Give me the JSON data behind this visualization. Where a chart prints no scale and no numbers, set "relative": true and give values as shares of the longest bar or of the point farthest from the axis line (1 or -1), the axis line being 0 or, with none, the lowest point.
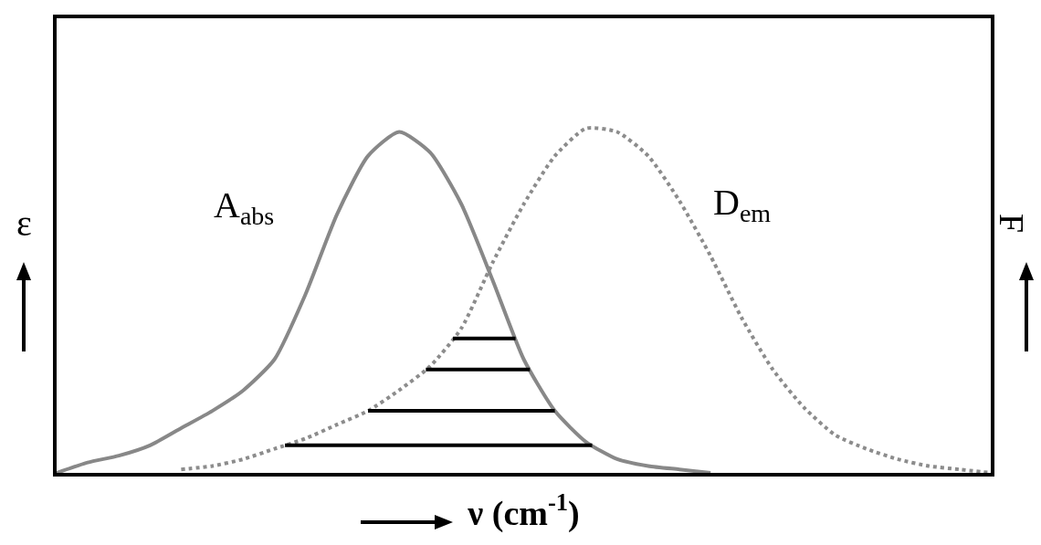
{
  "chart_data": {
    "type": "line",
    "relative": true,
    "xlabel": "ν (cm$^{-1}$)",
    "ylabel": "ε",
    "y2label": "F",
    "legend": false,
    "grid": false,
    "categories": [
      null,
      null,
      null,
      null,
      null,
      null,
      null,
      null,
      null,
      null,
      null,
      null,
      null,
      null,
      null,
      null,
      null,
      null,
      null,
      null,
      null,
      null,
      null,
      null,
      null,
      null,
      null,
      null,
      null,
      null,
      null
    ],
    "series": [
      {
        "name": "A$_{abs}$",
        "color": "#888888",
        "line_style": "solid",
        "values": [
          0,
          0.03,
          0.05,
          0.08,
          0.13,
          0.18,
          0.24,
          0.33,
          0.52,
          0.75,
          0.92,
          0.99,
          0.93,
          0.78,
          0.56,
          0.33,
          0.18,
          0.09,
          0.04,
          0.02,
          0.01,
          0,
          null,
          null,
          null,
          null,
          null,
          null,
          null,
          null,
          null
        ]
      },
      {
        "name": "D$_{em}$",
        "color": "#8c8c8c",
        "line_style": "dotted",
        "values": [
          null,
          null,
          null,
          null,
          0.01,
          0.02,
          0.04,
          0.07,
          0.1,
          0.14,
          0.18,
          0.24,
          0.31,
          0.42,
          0.61,
          0.78,
          0.92,
          1,
          0.99,
          0.92,
          0.79,
          0.63,
          0.45,
          0.3,
          0.19,
          0.11,
          0.07,
          0.04,
          0.02,
          0.01,
          0
        ]
      }
    ]
  }
}
